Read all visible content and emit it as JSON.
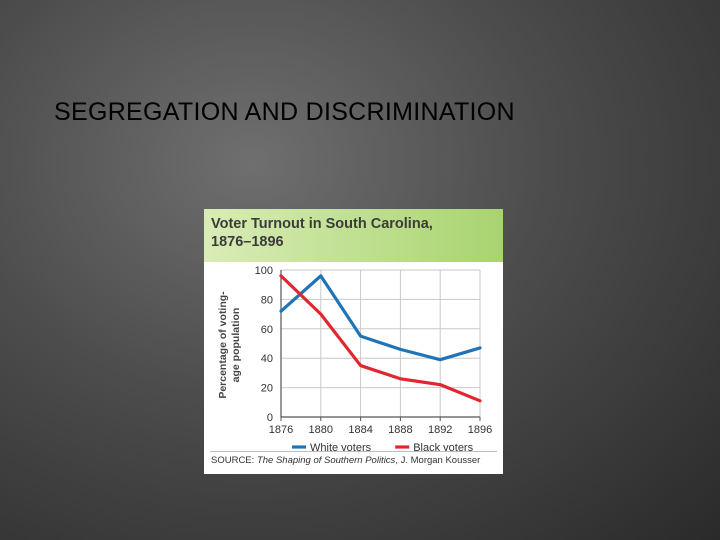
{
  "slide": {
    "title": "SEGREGATION AND DISCRIMINATION"
  },
  "chart_card": {
    "title_line1": "Voter Turnout in South Carolina,",
    "title_line2": "1876–1896",
    "source_label": "SOURCE:",
    "source_title": "The Shaping of Southern Politics",
    "source_author": ", J. Morgan Kousser",
    "header_color_start": "#d9ecb6",
    "header_color_end": "#a8d46f"
  },
  "chart_data": {
    "type": "line",
    "title": "Voter Turnout in South Carolina, 1876–1896",
    "xlabel": "",
    "ylabel": "Percentage of voting-age population",
    "ylabel_line1": "Percentage of voting-",
    "ylabel_line2": "age population",
    "x": [
      1876,
      1880,
      1884,
      1888,
      1892,
      1896
    ],
    "ylim": [
      0,
      100
    ],
    "yticks": [
      0,
      20,
      40,
      60,
      80,
      100
    ],
    "grid": true,
    "legend_position": "bottom",
    "series": [
      {
        "name": "White voters",
        "color": "#1f74b8",
        "values": [
          72,
          96,
          55,
          46,
          39,
          47
        ]
      },
      {
        "name": "Black voters",
        "color": "#e0262f",
        "values": [
          96,
          70,
          35,
          26,
          22,
          11
        ]
      }
    ]
  }
}
